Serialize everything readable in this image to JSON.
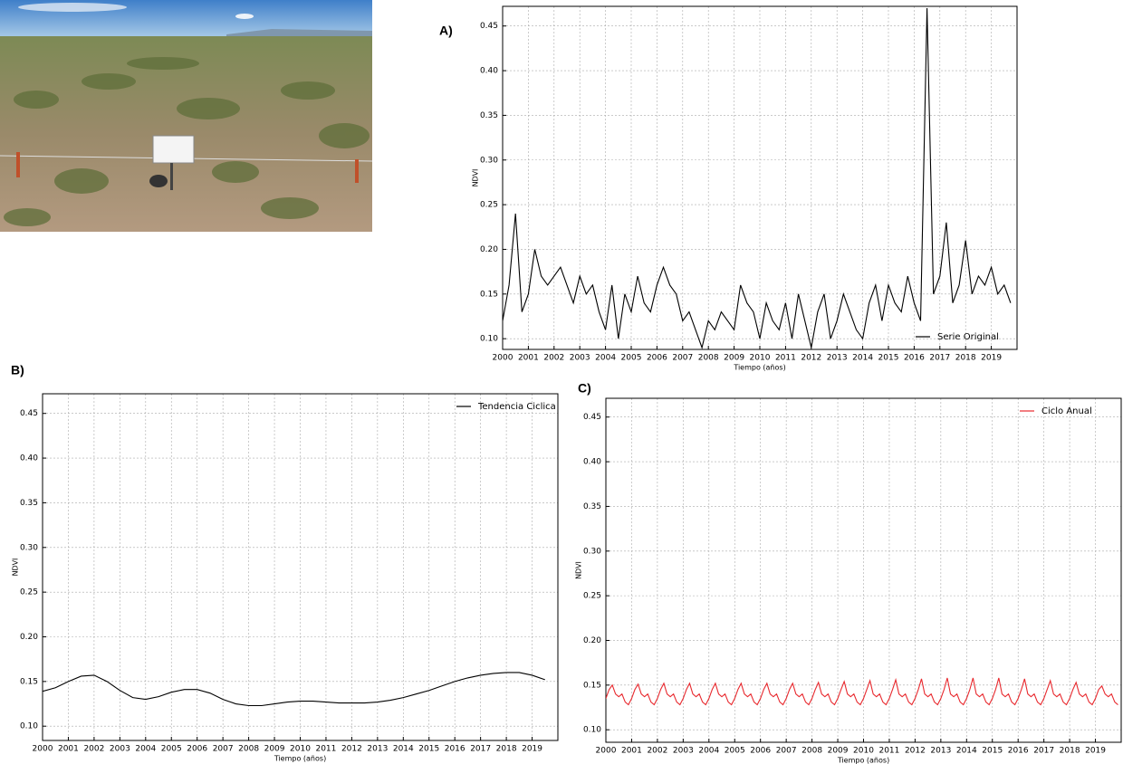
{
  "chart_data": [
    {
      "type": "line",
      "panel_label": "A)",
      "y_label": "NDVI",
      "x_label": "Tiempo (años)",
      "legend": "lower right",
      "grid": true,
      "xlim": [
        2000,
        2020
      ],
      "ylim": [
        0.088,
        0.472
      ],
      "xticks": [
        2000,
        2001,
        2002,
        2003,
        2004,
        2005,
        2006,
        2007,
        2008,
        2009,
        2010,
        2011,
        2012,
        2013,
        2014,
        2015,
        2016,
        2017,
        2018,
        2019
      ],
      "yticks": [
        {
          "value": 0.1,
          "label": "0.10"
        },
        0.15,
        {
          "value": 0.2,
          "label": "0.20"
        },
        0.25,
        {
          "value": 0.3,
          "label": "0.30"
        },
        0.35,
        {
          "value": 0.4,
          "label": "0.40"
        },
        0.45
      ],
      "x": [
        2000,
        2000.25,
        2000.5,
        2000.75,
        2001,
        2001.25,
        2001.5,
        2001.75,
        2002,
        2002.25,
        2002.5,
        2002.75,
        2003,
        2003.25,
        2003.5,
        2003.75,
        2004,
        2004.25,
        2004.5,
        2004.75,
        2005,
        2005.25,
        2005.5,
        2005.75,
        2006,
        2006.25,
        2006.5,
        2006.75,
        2007,
        2007.25,
        2007.5,
        2007.75,
        2008,
        2008.25,
        2008.5,
        2008.75,
        2009,
        2009.25,
        2009.5,
        2009.75,
        2010,
        2010.25,
        2010.5,
        2010.75,
        2011,
        2011.25,
        2011.5,
        2011.75,
        2012,
        2012.25,
        2012.5,
        2012.75,
        2013,
        2013.25,
        2013.5,
        2013.75,
        2014,
        2014.25,
        2014.5,
        2014.75,
        2015,
        2015.25,
        2015.5,
        2015.75,
        2016,
        2016.25,
        2016.5,
        2016.75,
        2017,
        2017.25,
        2017.5,
        2017.75,
        2018,
        2018.25,
        2018.5,
        2018.75,
        2019,
        2019.25,
        2019.5,
        2019.75
      ],
      "series": [
        {
          "name": "Serie Original",
          "color": "#000000",
          "values": [
            0.12,
            0.16,
            0.24,
            0.13,
            0.15,
            0.2,
            0.17,
            0.16,
            0.17,
            0.18,
            0.16,
            0.14,
            0.17,
            0.15,
            0.16,
            0.13,
            0.11,
            0.16,
            0.1,
            0.15,
            0.13,
            0.17,
            0.14,
            0.13,
            0.16,
            0.18,
            0.16,
            0.15,
            0.12,
            0.13,
            0.11,
            0.09,
            0.12,
            0.11,
            0.13,
            0.12,
            0.11,
            0.16,
            0.14,
            0.13,
            0.1,
            0.14,
            0.12,
            0.11,
            0.14,
            0.1,
            0.15,
            0.12,
            0.09,
            0.13,
            0.15,
            0.1,
            0.12,
            0.15,
            0.13,
            0.11,
            0.1,
            0.14,
            0.16,
            0.12,
            0.16,
            0.14,
            0.13,
            0.17,
            0.14,
            0.12,
            0.47,
            0.15,
            0.17,
            0.23,
            0.14,
            0.16,
            0.21,
            0.15,
            0.17,
            0.16,
            0.18,
            0.15,
            0.16,
            0.14
          ]
        }
      ]
    },
    {
      "type": "line",
      "panel_label": "B)",
      "y_label": "NDVI",
      "x_label": "Tiempo (años)",
      "legend": "upper right",
      "grid": true,
      "xlim": [
        2000,
        2020
      ],
      "ylim": [
        0.084,
        0.472
      ],
      "xticks": [
        2000,
        2001,
        2002,
        2003,
        2004,
        2005,
        2006,
        2007,
        2008,
        2009,
        2010,
        2011,
        2012,
        2013,
        2014,
        2015,
        2016,
        2017,
        2018,
        2019
      ],
      "yticks": [
        {
          "value": 0.1,
          "label": "0.10"
        },
        0.15,
        {
          "value": 0.2,
          "label": "0.20"
        },
        0.25,
        {
          "value": 0.3,
          "label": "0.30"
        },
        0.35,
        {
          "value": 0.4,
          "label": "0.40"
        },
        0.45
      ],
      "x": [
        2000,
        2000.5,
        2001,
        2001.5,
        2002,
        2002.5,
        2003,
        2003.5,
        2004,
        2004.5,
        2005,
        2005.5,
        2006,
        2006.5,
        2007,
        2007.5,
        2008,
        2008.5,
        2009,
        2009.5,
        2010,
        2010.5,
        2011,
        2011.5,
        2012,
        2012.5,
        2013,
        2013.5,
        2014,
        2014.5,
        2015,
        2015.5,
        2016,
        2016.5,
        2017,
        2017.5,
        2018,
        2018.5,
        2019,
        2019.5
      ],
      "series": [
        {
          "name": "Tendencia Ciclica",
          "color": "#000000",
          "values": [
            0.139,
            0.143,
            0.15,
            0.156,
            0.157,
            0.15,
            0.14,
            0.132,
            0.13,
            0.133,
            0.138,
            0.141,
            0.141,
            0.137,
            0.13,
            0.125,
            0.123,
            0.123,
            0.125,
            0.127,
            0.128,
            0.128,
            0.127,
            0.126,
            0.126,
            0.126,
            0.127,
            0.129,
            0.132,
            0.136,
            0.14,
            0.145,
            0.15,
            0.154,
            0.157,
            0.159,
            0.16,
            0.16,
            0.157,
            0.152
          ]
        }
      ]
    },
    {
      "type": "line",
      "panel_label": "C)",
      "y_label": "NDVI",
      "x_label": "Tiempo (años)",
      "legend": "upper right",
      "grid": true,
      "xlim": [
        2000,
        2020
      ],
      "ylim": [
        0.086,
        0.471
      ],
      "xticks": [
        2000,
        2001,
        2002,
        2003,
        2004,
        2005,
        2006,
        2007,
        2008,
        2009,
        2010,
        2011,
        2012,
        2013,
        2014,
        2015,
        2016,
        2017,
        2018,
        2019
      ],
      "yticks": [
        {
          "value": 0.1,
          "label": "0.10"
        },
        0.15,
        {
          "value": 0.2,
          "label": "0.20"
        },
        0.25,
        {
          "value": 0.3,
          "label": "0.30"
        },
        0.35,
        {
          "value": 0.4,
          "label": "0.40"
        },
        0.45
      ],
      "x": [
        2000,
        2000.125,
        2000.25,
        2000.375,
        2000.5,
        2000.625,
        2000.75,
        2000.875,
        2001,
        2001.125,
        2001.25,
        2001.375,
        2001.5,
        2001.625,
        2001.75,
        2001.875,
        2002,
        2002.125,
        2002.25,
        2002.375,
        2002.5,
        2002.625,
        2002.75,
        2002.875,
        2003,
        2003.125,
        2003.25,
        2003.375,
        2003.5,
        2003.625,
        2003.75,
        2003.875,
        2004,
        2004.125,
        2004.25,
        2004.375,
        2004.5,
        2004.625,
        2004.75,
        2004.875,
        2005,
        2005.125,
        2005.25,
        2005.375,
        2005.5,
        2005.625,
        2005.75,
        2005.875,
        2006,
        2006.125,
        2006.25,
        2006.375,
        2006.5,
        2006.625,
        2006.75,
        2006.875,
        2007,
        2007.125,
        2007.25,
        2007.375,
        2007.5,
        2007.625,
        2007.75,
        2007.875,
        2008,
        2008.125,
        2008.25,
        2008.375,
        2008.5,
        2008.625,
        2008.75,
        2008.875,
        2009,
        2009.125,
        2009.25,
        2009.375,
        2009.5,
        2009.625,
        2009.75,
        2009.875,
        2010,
        2010.125,
        2010.25,
        2010.375,
        2010.5,
        2010.625,
        2010.75,
        2010.875,
        2011,
        2011.125,
        2011.25,
        2011.375,
        2011.5,
        2011.625,
        2011.75,
        2011.875,
        2012,
        2012.125,
        2012.25,
        2012.375,
        2012.5,
        2012.625,
        2012.75,
        2012.875,
        2013,
        2013.125,
        2013.25,
        2013.375,
        2013.5,
        2013.625,
        2013.75,
        2013.875,
        2014,
        2014.125,
        2014.25,
        2014.375,
        2014.5,
        2014.625,
        2014.75,
        2014.875,
        2015,
        2015.125,
        2015.25,
        2015.375,
        2015.5,
        2015.625,
        2015.75,
        2015.875,
        2016,
        2016.125,
        2016.25,
        2016.375,
        2016.5,
        2016.625,
        2016.75,
        2016.875,
        2017,
        2017.125,
        2017.25,
        2017.375,
        2017.5,
        2017.625,
        2017.75,
        2017.875,
        2018,
        2018.125,
        2018.25,
        2018.375,
        2018.5,
        2018.625,
        2018.75,
        2018.875,
        2019,
        2019.125,
        2019.25,
        2019.375,
        2019.5,
        2019.625,
        2019.75,
        2019.875
      ],
      "series": [
        {
          "name": "Ciclo Anual",
          "color": "#e8292e",
          "values": [
            0.135,
            0.145,
            0.15,
            0.14,
            0.137,
            0.14,
            0.131,
            0.128,
            0.135,
            0.145,
            0.151,
            0.14,
            0.137,
            0.14,
            0.131,
            0.128,
            0.135,
            0.145,
            0.152,
            0.14,
            0.137,
            0.14,
            0.131,
            0.128,
            0.135,
            0.145,
            0.152,
            0.14,
            0.137,
            0.14,
            0.131,
            0.128,
            0.135,
            0.145,
            0.152,
            0.14,
            0.137,
            0.14,
            0.131,
            0.128,
            0.135,
            0.145,
            0.152,
            0.14,
            0.137,
            0.14,
            0.131,
            0.128,
            0.135,
            0.145,
            0.152,
            0.14,
            0.137,
            0.14,
            0.131,
            0.128,
            0.135,
            0.145,
            0.152,
            0.14,
            0.137,
            0.14,
            0.131,
            0.128,
            0.135,
            0.145,
            0.153,
            0.14,
            0.137,
            0.14,
            0.131,
            0.128,
            0.135,
            0.145,
            0.154,
            0.14,
            0.137,
            0.14,
            0.131,
            0.128,
            0.135,
            0.145,
            0.155,
            0.14,
            0.137,
            0.14,
            0.131,
            0.128,
            0.135,
            0.145,
            0.156,
            0.14,
            0.137,
            0.14,
            0.131,
            0.128,
            0.135,
            0.145,
            0.157,
            0.14,
            0.137,
            0.14,
            0.131,
            0.128,
            0.135,
            0.145,
            0.158,
            0.14,
            0.137,
            0.14,
            0.131,
            0.128,
            0.135,
            0.145,
            0.158,
            0.14,
            0.137,
            0.14,
            0.131,
            0.128,
            0.135,
            0.145,
            0.158,
            0.14,
            0.137,
            0.14,
            0.131,
            0.128,
            0.135,
            0.145,
            0.157,
            0.14,
            0.137,
            0.14,
            0.131,
            0.128,
            0.135,
            0.145,
            0.155,
            0.14,
            0.137,
            0.14,
            0.131,
            0.128,
            0.135,
            0.145,
            0.153,
            0.14,
            0.137,
            0.14,
            0.131,
            0.128,
            0.135,
            0.145,
            0.149,
            0.14,
            0.137,
            0.14,
            0.131,
            0.128
          ]
        }
      ]
    }
  ]
}
